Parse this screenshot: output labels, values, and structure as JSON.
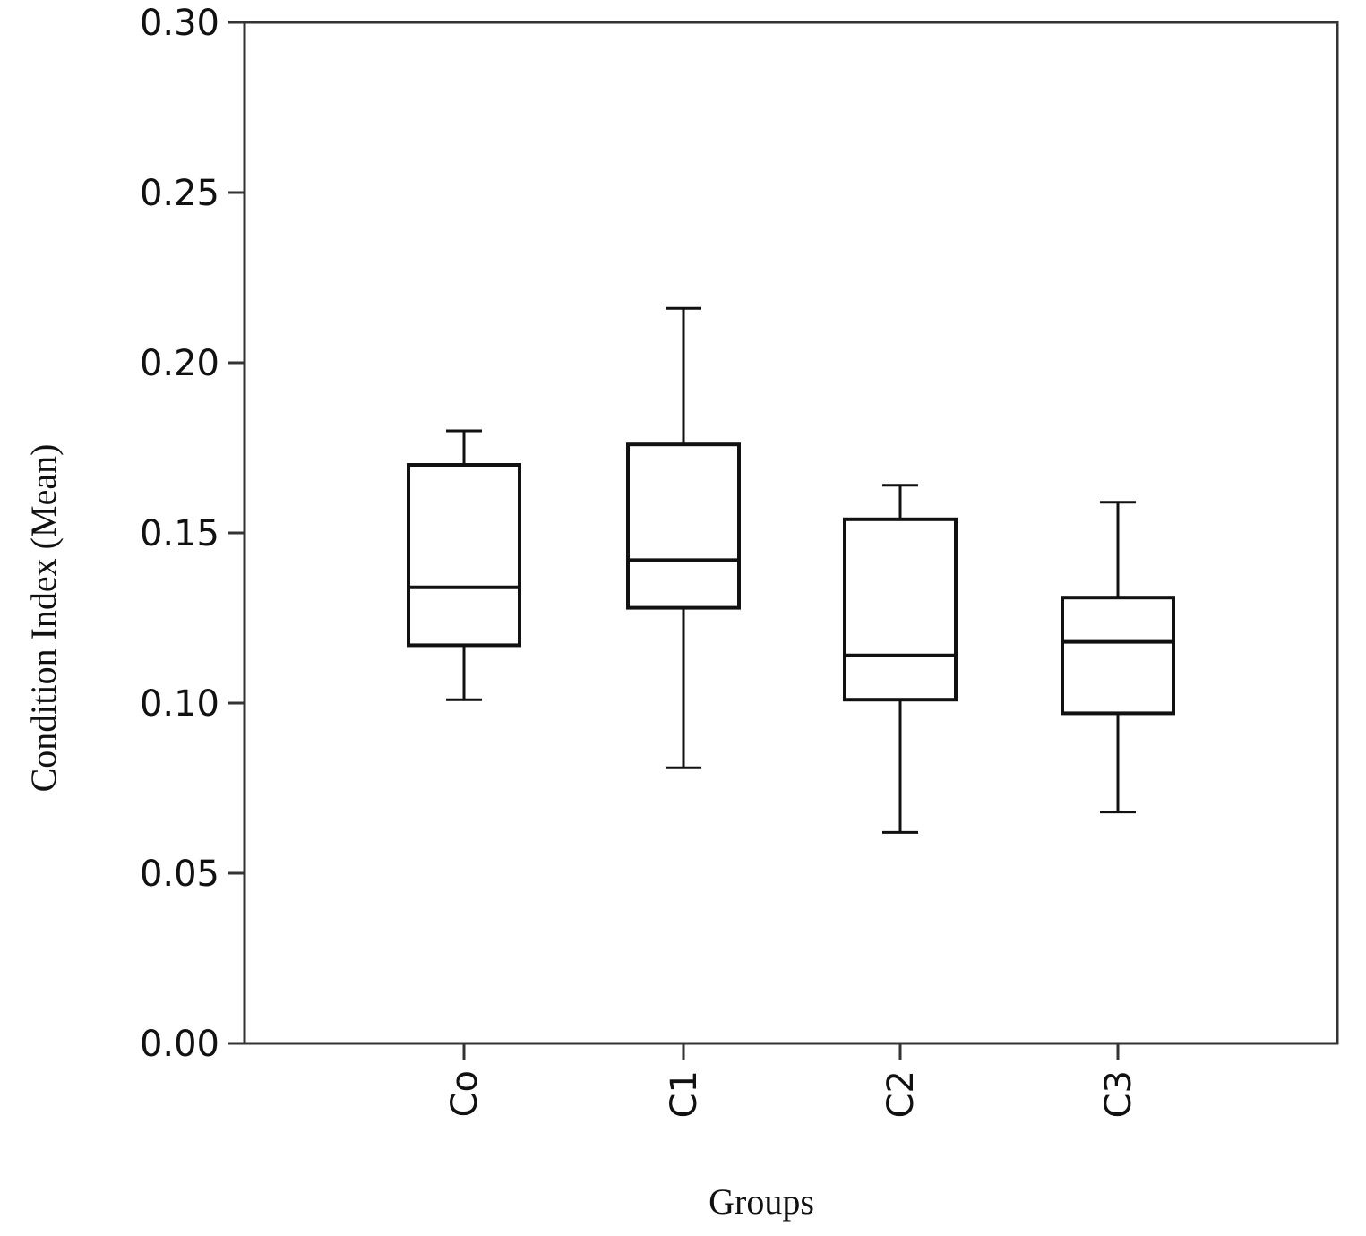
{
  "chart_data": {
    "type": "boxplot",
    "xlabel": "Groups",
    "ylabel": "Condition Index (Mean)",
    "ylim": [
      0,
      0.3
    ],
    "yticks": [
      "0.00",
      "0.05",
      "0.10",
      "0.15",
      "0.20",
      "0.25",
      "0.30"
    ],
    "ytick_values": [
      0.0,
      0.05,
      0.1,
      0.15,
      0.2,
      0.25,
      0.3
    ],
    "categories": [
      "Co",
      "C1",
      "C2",
      "C3"
    ],
    "boxes": [
      {
        "group": "Co",
        "whisker_low": 0.101,
        "q1": 0.117,
        "median": 0.134,
        "q3": 0.17,
        "whisker_high": 0.18
      },
      {
        "group": "C1",
        "whisker_low": 0.081,
        "q1": 0.128,
        "median": 0.142,
        "q3": 0.176,
        "whisker_high": 0.216
      },
      {
        "group": "C2",
        "whisker_low": 0.062,
        "q1": 0.101,
        "median": 0.114,
        "q3": 0.154,
        "whisker_high": 0.164
      },
      {
        "group": "C3",
        "whisker_low": 0.068,
        "q1": 0.097,
        "median": 0.118,
        "q3": 0.131,
        "whisker_high": 0.159
      }
    ],
    "grid": false,
    "line_color": "#111111"
  }
}
